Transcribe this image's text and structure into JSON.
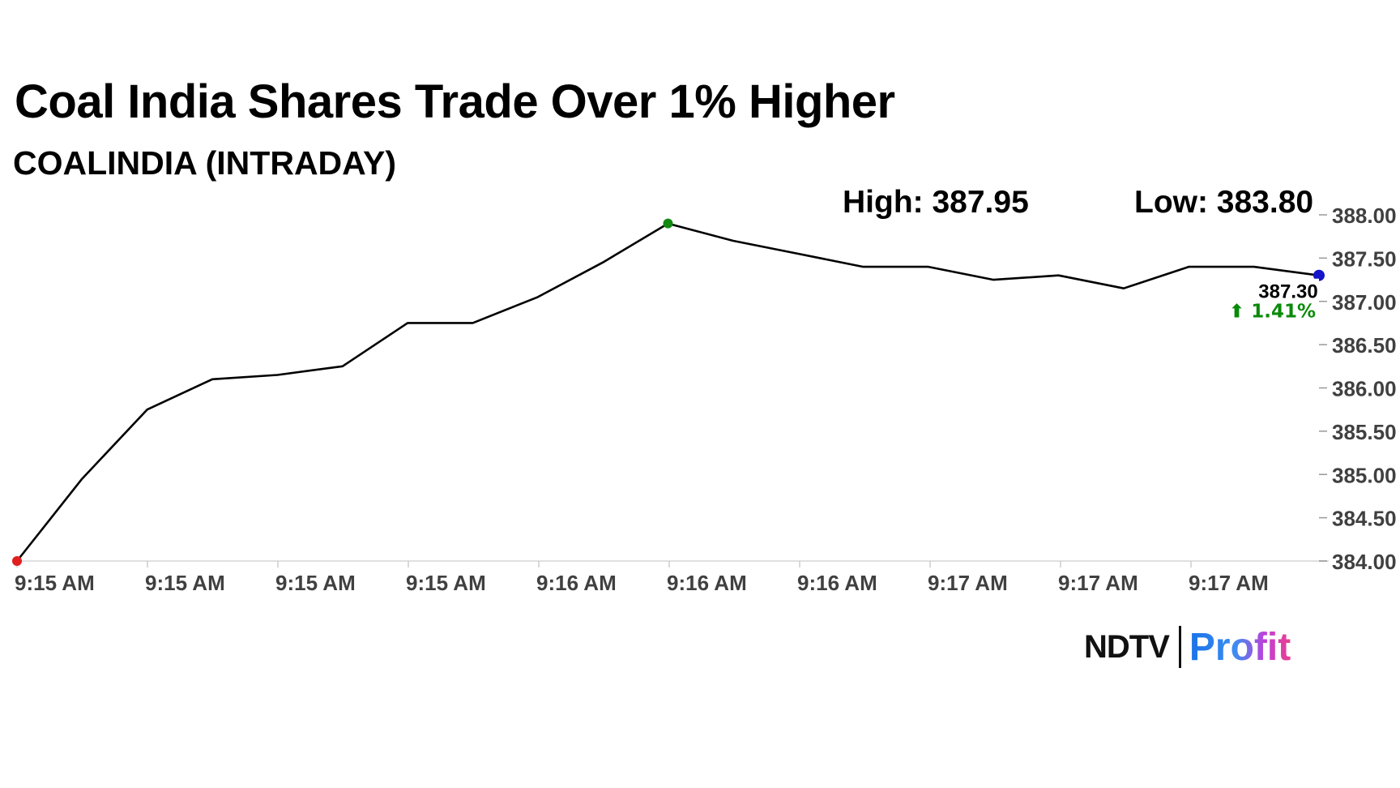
{
  "chart_data": {
    "type": "line",
    "title": "Coal India Shares Trade Over 1% Higher",
    "subtitle": "COALINDIA (INTRADAY)",
    "high_label": "High: 387.95",
    "low_label": "Low: 383.80",
    "last_value_label": "387.30",
    "change_label": "⬆ 1.41%",
    "ylim": [
      384.0,
      388.0
    ],
    "y_ticks": [
      "388.00",
      "387.50",
      "387.00",
      "386.50",
      "386.00",
      "385.50",
      "385.00",
      "384.50",
      "384.00"
    ],
    "x_ticks": [
      "9:15 AM",
      "9:15 AM",
      "9:15 AM",
      "9:15 AM",
      "9:16 AM",
      "9:16 AM",
      "9:16 AM",
      "9:17 AM",
      "9:17 AM",
      "9:17 AM"
    ],
    "grid": false,
    "series": [
      {
        "values": [
          384.0,
          384.95,
          385.75,
          386.1,
          386.15,
          386.25,
          386.75,
          386.75,
          387.05,
          387.45,
          387.9,
          387.7,
          387.55,
          387.4,
          387.4,
          387.25,
          387.3,
          387.15,
          387.4,
          387.4,
          387.3
        ]
      }
    ],
    "marker_colors": {
      "start": "#e02020",
      "high": "#128a12",
      "last": "#1414c8"
    },
    "line_color": "#000000",
    "change_color": "#0a8a0a"
  },
  "brand": {
    "part1": "NDTV",
    "part2": "Profit"
  }
}
